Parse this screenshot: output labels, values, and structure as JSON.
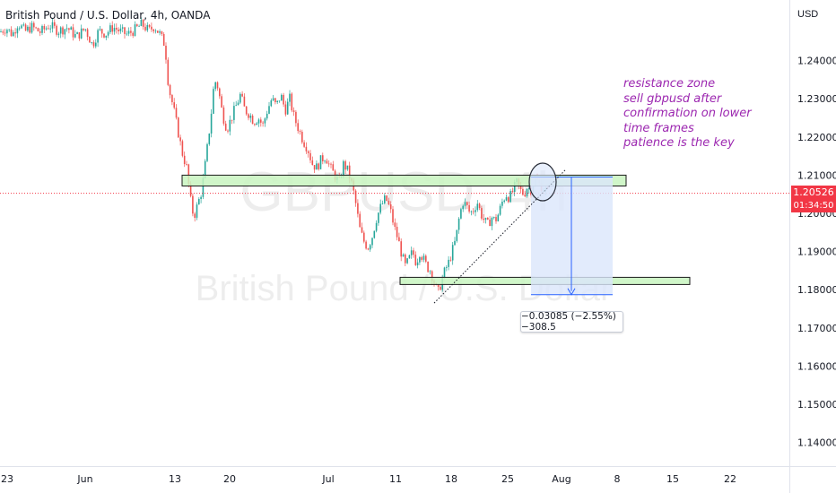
{
  "legend": {
    "symbol_text": "British Pound / U.S. Dollar, 4h, OANDA"
  },
  "axis": {
    "unit": "USD"
  },
  "watermark": {
    "ticker": "GBPUSD, 4h",
    "name": "British Pound / U.S. Dollar"
  },
  "annotation": {
    "lines": [
      "resistance zone",
      "sell gbpusd after",
      "confirmation on lower",
      "time frames",
      "patience is the key"
    ]
  },
  "measure": {
    "label": "−0.03085 (−2.55%) −308.5"
  },
  "last_price": {
    "price": "1.20526",
    "countdown": "01:34:50"
  },
  "colors": {
    "up": "#26a69a",
    "down": "#ef5350",
    "zone_fill": "#c8f5c0",
    "zone_stroke": "#1b1b1b",
    "projection_fill": "#dbe6fb",
    "projection_line": "#2962ff",
    "note": "#9c27b0",
    "last_price_line": "#f23645"
  },
  "chart_data": {
    "type": "candlestick",
    "ylim": [
      1.135,
      1.2535
    ],
    "y_ticks": [
      "1.24000",
      "1.23000",
      "1.22000",
      "1.21000",
      "1.20000",
      "1.19000",
      "1.18000",
      "1.17000",
      "1.16000",
      "1.15000",
      "1.14000"
    ],
    "x_ticks": [
      "23",
      "Jun",
      "13",
      "20",
      "Jul",
      "11",
      "18",
      "25",
      "Aug",
      "8",
      "15",
      "22"
    ],
    "resistance_zone": {
      "low": 1.2088,
      "high": 1.21,
      "from": "May 31",
      "to": "Aug 5"
    },
    "support_zone": {
      "low": 1.1813,
      "high": 1.1823,
      "from": "Jul 13",
      "to": "Aug 15"
    },
    "trendline": {
      "from_price": 1.1765,
      "to_price": 1.2113
    },
    "projection": {
      "from_price": 1.2095,
      "to_price": 1.1787,
      "change": -0.03085,
      "change_pct": -2.55,
      "pips": -308.5
    },
    "last_price": 1.20526,
    "path": [
      [
        0,
        1.2475
      ],
      [
        7,
        1.2485
      ],
      [
        14,
        1.2468
      ],
      [
        20,
        1.2498
      ],
      [
        28,
        1.2476
      ],
      [
        35,
        1.2488
      ],
      [
        45,
        1.2474
      ],
      [
        55,
        1.2492
      ],
      [
        65,
        1.2478
      ],
      [
        75,
        1.2486
      ],
      [
        85,
        1.2462
      ],
      [
        95,
        1.2484
      ],
      [
        103,
        1.244
      ],
      [
        110,
        1.2478
      ],
      [
        118,
        1.247
      ],
      [
        126,
        1.2488
      ],
      [
        134,
        1.2476
      ],
      [
        142,
        1.2468
      ],
      [
        150,
        1.248
      ],
      [
        158,
        1.2495
      ],
      [
        166,
        1.2478
      ],
      [
        172,
        1.249
      ],
      [
        178,
        1.247
      ],
      [
        184,
        1.244
      ],
      [
        188,
        1.233
      ],
      [
        193,
        1.228
      ],
      [
        198,
        1.222
      ],
      [
        203,
        1.216
      ],
      [
        208,
        1.212
      ],
      [
        212,
        1.204
      ],
      [
        216,
        1.199
      ],
      [
        220,
        1.202
      ],
      [
        225,
        1.206
      ],
      [
        230,
        1.215
      ],
      [
        235,
        1.225
      ],
      [
        239,
        1.235
      ],
      [
        243,
        1.233
      ],
      [
        248,
        1.226
      ],
      [
        253,
        1.222
      ],
      [
        258,
        1.225
      ],
      [
        263,
        1.228
      ],
      [
        268,
        1.231
      ],
      [
        273,
        1.227
      ],
      [
        278,
        1.226
      ],
      [
        283,
        1.224
      ],
      [
        288,
        1.225
      ],
      [
        293,
        1.223
      ],
      [
        298,
        1.227
      ],
      [
        303,
        1.23
      ],
      [
        308,
        1.228
      ],
      [
        313,
        1.231
      ],
      [
        318,
        1.227
      ],
      [
        323,
        1.23
      ],
      [
        328,
        1.225
      ],
      [
        333,
        1.222
      ],
      [
        338,
        1.219
      ],
      [
        343,
        1.217
      ],
      [
        348,
        1.213
      ],
      [
        353,
        1.212
      ],
      [
        358,
        1.214
      ],
      [
        363,
        1.215
      ],
      [
        368,
        1.212
      ],
      [
        373,
        1.21
      ],
      [
        378,
        1.208
      ],
      [
        383,
        1.213
      ],
      [
        388,
        1.211
      ],
      [
        393,
        1.207
      ],
      [
        397,
        1.202
      ],
      [
        401,
        1.196
      ],
      [
        405,
        1.193
      ],
      [
        410,
        1.191
      ],
      [
        415,
        1.194
      ],
      [
        420,
        1.199
      ],
      [
        425,
        1.202
      ],
      [
        430,
        1.204
      ],
      [
        435,
        1.201
      ],
      [
        440,
        1.196
      ],
      [
        444,
        1.193
      ],
      [
        448,
        1.189
      ],
      [
        452,
        1.186
      ],
      [
        456,
        1.188
      ],
      [
        460,
        1.19
      ],
      [
        464,
        1.187
      ],
      [
        468,
        1.19
      ],
      [
        472,
        1.188
      ],
      [
        476,
        1.186
      ],
      [
        480,
        1.185
      ],
      [
        484,
        1.182
      ],
      [
        488,
        1.179
      ],
      [
        492,
        1.182
      ],
      [
        496,
        1.185
      ],
      [
        500,
        1.187
      ],
      [
        504,
        1.19
      ],
      [
        508,
        1.193
      ],
      [
        512,
        1.199
      ],
      [
        516,
        1.203
      ],
      [
        520,
        1.202
      ],
      [
        524,
        1.2
      ],
      [
        528,
        1.201
      ],
      [
        532,
        1.203
      ],
      [
        536,
        1.2
      ],
      [
        540,
        1.198
      ],
      [
        544,
        1.197
      ],
      [
        548,
        1.199
      ],
      [
        552,
        1.198
      ],
      [
        556,
        1.2
      ],
      [
        560,
        1.203
      ],
      [
        564,
        1.205
      ],
      [
        568,
        1.204
      ],
      [
        572,
        1.206
      ],
      [
        576,
        1.208
      ],
      [
        580,
        1.206
      ],
      [
        584,
        1.205
      ],
      [
        588,
        1.207
      ],
      [
        592,
        1.206
      ],
      [
        596,
        1.209
      ],
      [
        600,
        1.208
      ],
      [
        604,
        1.207
      ],
      [
        608,
        1.206
      ],
      [
        612,
        1.2053
      ]
    ]
  }
}
